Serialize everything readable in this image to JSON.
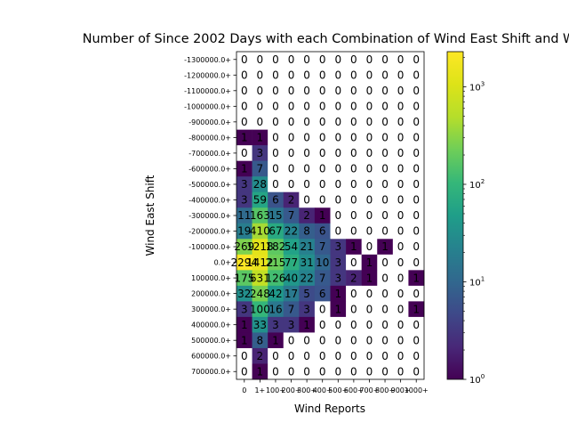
{
  "chart_data": {
    "type": "heatmap",
    "title": "Number of Since 2002 Days with each Combination of Wind East Shift and W",
    "xlabel": "Wind Reports",
    "ylabel": "Wind East Shift",
    "x_categories": [
      "0",
      "1+",
      "100+",
      "200+",
      "300+",
      "400+",
      "500+",
      "600+",
      "700+",
      "800+",
      "900+",
      "1000+"
    ],
    "y_categories": [
      "-1300000.0+",
      "-1200000.0+",
      "-1100000.0+",
      "-1000000.0+",
      "-900000.0+",
      "-800000.0+",
      "-700000.0+",
      "-600000.0+",
      "-500000.0+",
      "-400000.0+",
      "-300000.0+",
      "-200000.0+",
      "-100000.0+",
      "0.0+",
      "100000.0+",
      "200000.0+",
      "300000.0+",
      "400000.0+",
      "500000.0+",
      "600000.0+",
      "700000.0+"
    ],
    "cell_labels": [
      [
        "0",
        "0",
        "0",
        "0",
        "0",
        "0",
        "0",
        "0",
        "0",
        "0",
        "0",
        "0"
      ],
      [
        "0",
        "0",
        "0",
        "0",
        "0",
        "0",
        "0",
        "0",
        "0",
        "0",
        "0",
        "0"
      ],
      [
        "0",
        "0",
        "0",
        "0",
        "0",
        "0",
        "0",
        "0",
        "0",
        "0",
        "0",
        "0"
      ],
      [
        "0",
        "0",
        "0",
        "0",
        "0",
        "0",
        "0",
        "0",
        "0",
        "0",
        "0",
        "0"
      ],
      [
        "0",
        "0",
        "0",
        "0",
        "0",
        "0",
        "0",
        "0",
        "0",
        "0",
        "0",
        "0"
      ],
      [
        "1",
        "1",
        "0",
        "0",
        "0",
        "0",
        "0",
        "0",
        "0",
        "0",
        "0",
        "0"
      ],
      [
        "0",
        "3",
        "0",
        "0",
        "0",
        "0",
        "0",
        "0",
        "0",
        "0",
        "0",
        "0"
      ],
      [
        "1",
        "7",
        "0",
        "0",
        "0",
        "0",
        "0",
        "0",
        "0",
        "0",
        "0",
        "0"
      ],
      [
        "3",
        "28",
        "0",
        "0",
        "0",
        "0",
        "0",
        "0",
        "0",
        "0",
        "0",
        "0"
      ],
      [
        "3",
        "59",
        "6",
        "2",
        "0",
        "0",
        "0",
        "0",
        "0",
        "0",
        "0",
        "0"
      ],
      [
        "11",
        "163",
        "15",
        "7",
        "2",
        "1",
        "0",
        "0",
        "0",
        "0",
        "0",
        "0"
      ],
      [
        "19",
        "410",
        "67",
        "22",
        "8",
        "6",
        "0",
        "0",
        "0",
        "0",
        "0",
        "0"
      ],
      [
        "269",
        "1218",
        "182",
        "54",
        "21",
        "7",
        "3",
        "1",
        "0",
        "1",
        "0",
        "0"
      ],
      [
        "2294",
        "1412",
        "215",
        "77",
        "31",
        "10",
        "3",
        "0",
        "1",
        "0",
        "0",
        "0"
      ],
      [
        "175",
        "631",
        "126",
        "40",
        "22",
        "7",
        "3",
        "2",
        "1",
        "0",
        "0",
        "1"
      ],
      [
        "32",
        "248",
        "42",
        "17",
        "5",
        "6",
        "1",
        "0",
        "0",
        "0",
        "0",
        "0"
      ],
      [
        "3",
        "100",
        "16",
        "7",
        "3",
        "0",
        "1",
        "0",
        "0",
        "0",
        "0",
        "1"
      ],
      [
        "1",
        "33",
        "3",
        "3",
        "1",
        "0",
        "0",
        "0",
        "0",
        "0",
        "0",
        "0"
      ],
      [
        "1",
        "8",
        "1",
        "0",
        "0",
        "0",
        "0",
        "0",
        "0",
        "0",
        "0",
        "0"
      ],
      [
        "0",
        "2",
        "0",
        "0",
        "0",
        "0",
        "0",
        "0",
        "0",
        "0",
        "0",
        "0"
      ],
      [
        "0",
        "1",
        "0",
        "0",
        "0",
        "0",
        "0",
        "0",
        "0",
        "0",
        "0",
        "0"
      ]
    ],
    "colorbar": {
      "scale": "log",
      "range": [
        1,
        2294
      ],
      "tick_labels": [
        "10^0",
        "10^1",
        "10^2",
        "10^3"
      ]
    },
    "colormap": "viridis",
    "zero_color": "#ffffff"
  }
}
